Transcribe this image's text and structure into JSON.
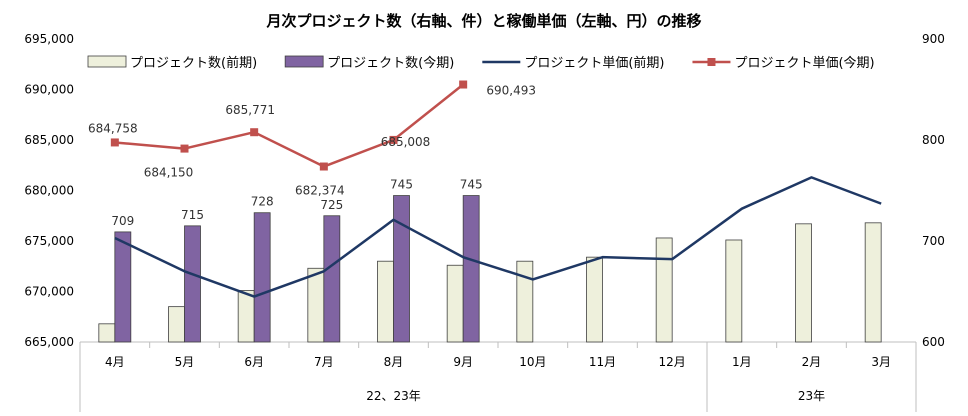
{
  "chart_data": {
    "type": "bar",
    "title": "月次プロジェクト数（右軸、件）と稼働単価（左軸、円）の推移",
    "categories": [
      "4月",
      "5月",
      "6月",
      "7月",
      "8月",
      "9月",
      "10月",
      "11月",
      "12月",
      "1月",
      "2月",
      "3月"
    ],
    "groups": [
      {
        "label": "22、23年",
        "from": 0,
        "to": 8
      },
      {
        "label": "23年",
        "from": 9,
        "to": 11
      }
    ],
    "left_axis": {
      "min": 665000,
      "max": 695000,
      "step": 5000,
      "ticks": [
        "665,000",
        "670,000",
        "675,000",
        "680,000",
        "685,000",
        "690,000",
        "695,000"
      ]
    },
    "right_axis": {
      "min": 600,
      "max": 900,
      "step": 100,
      "ticks": [
        "600",
        "700",
        "800",
        "900"
      ]
    },
    "legend_position": "top",
    "series": [
      {
        "name": "プロジェクト数(前期)",
        "kind": "bar",
        "axis": "right",
        "color": "#eef0dc",
        "values": [
          618,
          635,
          651,
          673,
          680,
          676,
          680,
          684,
          703,
          701,
          717,
          718
        ]
      },
      {
        "name": "プロジェクト数(今期)",
        "kind": "bar",
        "axis": "right",
        "color": "#8064a2",
        "values": [
          709,
          715,
          728,
          725,
          745,
          745,
          null,
          null,
          null,
          null,
          null,
          null
        ],
        "labels": [
          "709",
          "715",
          "728",
          "725",
          "745",
          "745"
        ]
      },
      {
        "name": "プロジェクト単価(前期)",
        "kind": "line",
        "axis": "left",
        "color": "#1f3864",
        "values": [
          675300,
          672000,
          669500,
          672000,
          677100,
          673400,
          671200,
          673400,
          673200,
          678200,
          681300,
          678700
        ]
      },
      {
        "name": "プロジェクト単価(今期)",
        "kind": "line",
        "axis": "left",
        "color": "#c0504d",
        "marker": "square",
        "values": [
          684758,
          684150,
          685771,
          682374,
          685008,
          690493,
          null,
          null,
          null,
          null,
          null,
          null
        ],
        "labels": [
          "684,758",
          "684,150",
          "685,771",
          "682,374",
          "685,008",
          "690,493"
        ]
      }
    ]
  }
}
